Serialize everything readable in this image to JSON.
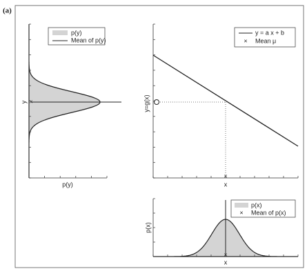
{
  "label": "(a)",
  "panels": [
    {
      "legend": [
        "p(y)",
        "Mean of p(y)"
      ],
      "y_label": "y",
      "x_label": "p(y)"
    },
    {
      "legend": [
        "y = a x + b",
        "Mean μ"
      ],
      "y_label": "y=g(x)",
      "x_label": "x"
    },
    {
      "legend": [
        "p(x)",
        "Mean of p(x)"
      ],
      "y_label": "p(x)",
      "x_label": "x"
    }
  ]
}
